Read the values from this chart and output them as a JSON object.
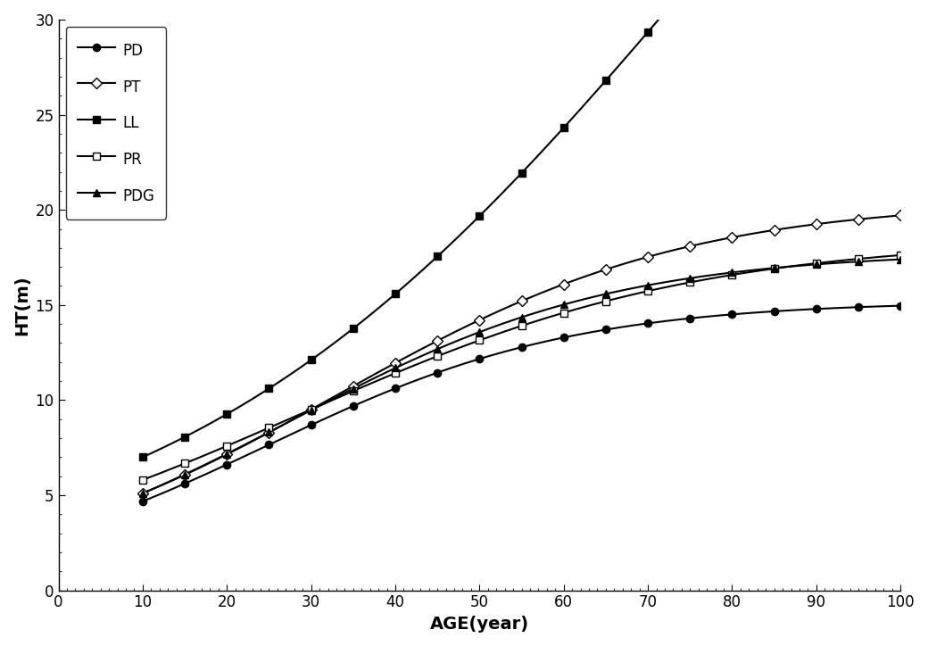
{
  "xlabel": "AGE(year)",
  "ylabel": "HT(m)",
  "xlim": [
    0,
    100
  ],
  "ylim": [
    0,
    30
  ],
  "xticks": [
    0,
    10,
    20,
    30,
    40,
    50,
    60,
    70,
    80,
    90,
    100
  ],
  "yticks": [
    0,
    5,
    10,
    15,
    20,
    25,
    30
  ],
  "series": [
    {
      "name": "PD",
      "marker": "o",
      "fillstyle": "full",
      "params": {
        "A": 15.3,
        "b": 2.25,
        "k": 0.055
      }
    },
    {
      "name": "PT",
      "marker": "D",
      "fillstyle": "none",
      "params": {
        "A": 20.5,
        "b": 3.1,
        "k": 0.048
      }
    },
    {
      "name": "LL",
      "marker": "s",
      "fillstyle": "full",
      "params": {
        "A": 65.0,
        "b": 12.5,
        "k": 0.032
      }
    },
    {
      "name": "PR",
      "marker": "s",
      "fillstyle": "none",
      "params": {
        "A": 18.5,
        "b": 6.5,
        "k": 0.042
      }
    },
    {
      "name": "PDG",
      "marker": "^",
      "fillstyle": "full",
      "params": {
        "A": 17.8,
        "b": 2.6,
        "k": 0.052
      }
    }
  ],
  "line_color": "#000000",
  "linewidth": 1.5,
  "markersize": 6,
  "marker_interval": 5,
  "background_color": "#ffffff",
  "legend_loc": "upper left"
}
